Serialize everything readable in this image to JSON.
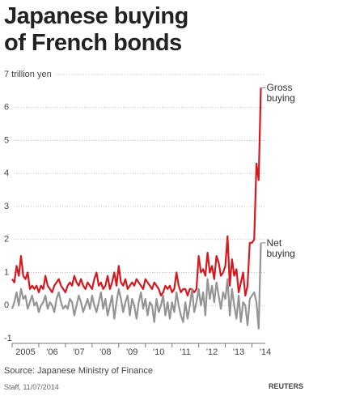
{
  "chart_data": {
    "type": "line",
    "title": "Japanese buying of French bonds",
    "source": "Source: Japanese Ministry of Finance",
    "credit": "Staff, 11/07/2014",
    "brand": "REUTERS",
    "xlim": [
      2005,
      2014.5
    ],
    "ylim": [
      -1,
      7
    ],
    "xticks": [
      {
        "value": 2005,
        "label": "2005"
      },
      {
        "value": 2006,
        "label": "'06"
      },
      {
        "value": 2007,
        "label": "'07"
      },
      {
        "value": 2008,
        "label": "'08"
      },
      {
        "value": 2009,
        "label": "'09"
      },
      {
        "value": 2010,
        "label": "'10"
      },
      {
        "value": 2011,
        "label": "'11"
      },
      {
        "value": 2012,
        "label": "'12"
      },
      {
        "value": 2013,
        "label": "'13"
      },
      {
        "value": 2014,
        "label": "'14"
      }
    ],
    "yticks": [
      -1,
      0,
      1,
      2,
      3,
      4,
      5,
      6,
      {
        "value": 7,
        "label": "7 trillion yen"
      }
    ],
    "grid": true,
    "x": [
      2005,
      2005.083,
      2005.167,
      2005.25,
      2005.333,
      2005.417,
      2005.5,
      2005.583,
      2005.667,
      2005.75,
      2005.833,
      2005.917,
      2006,
      2006.083,
      2006.167,
      2006.25,
      2006.333,
      2006.417,
      2006.5,
      2006.583,
      2006.667,
      2006.75,
      2006.833,
      2006.917,
      2007,
      2007.083,
      2007.167,
      2007.25,
      2007.333,
      2007.417,
      2007.5,
      2007.583,
      2007.667,
      2007.75,
      2007.833,
      2007.917,
      2008,
      2008.083,
      2008.167,
      2008.25,
      2008.333,
      2008.417,
      2008.5,
      2008.583,
      2008.667,
      2008.75,
      2008.833,
      2008.917,
      2009,
      2009.083,
      2009.167,
      2009.25,
      2009.333,
      2009.417,
      2009.5,
      2009.583,
      2009.667,
      2009.75,
      2009.833,
      2009.917,
      2010,
      2010.083,
      2010.167,
      2010.25,
      2010.333,
      2010.417,
      2010.5,
      2010.583,
      2010.667,
      2010.75,
      2010.833,
      2010.917,
      2011,
      2011.083,
      2011.167,
      2011.25,
      2011.333,
      2011.417,
      2011.5,
      2011.583,
      2011.667,
      2011.75,
      2011.833,
      2011.917,
      2012,
      2012.083,
      2012.167,
      2012.25,
      2012.333,
      2012.417,
      2012.5,
      2012.583,
      2012.667,
      2012.75,
      2012.833,
      2012.917,
      2013,
      2013.083,
      2013.167,
      2013.25,
      2013.333,
      2013.417,
      2013.5,
      2013.583,
      2013.667,
      2013.75,
      2013.833,
      2013.917,
      2014,
      2014.083,
      2014.167,
      2014.25,
      2014.333
    ],
    "series": [
      {
        "name": "Gross buying",
        "color": "#d7191f",
        "values": [
          0.8,
          0.7,
          1.2,
          0.9,
          1.5,
          0.9,
          0.8,
          1.0,
          0.5,
          0.6,
          0.5,
          0.6,
          0.4,
          0.6,
          0.5,
          0.9,
          0.6,
          0.5,
          0.4,
          0.6,
          0.7,
          0.8,
          0.6,
          0.5,
          0.4,
          0.6,
          0.7,
          0.6,
          0.9,
          0.7,
          0.6,
          0.8,
          0.6,
          0.5,
          0.7,
          0.6,
          0.5,
          0.8,
          1.0,
          0.6,
          0.7,
          0.5,
          0.6,
          0.9,
          0.5,
          0.7,
          1.0,
          0.6,
          1.2,
          0.7,
          0.6,
          0.8,
          0.5,
          0.6,
          0.7,
          0.6,
          0.8,
          0.7,
          0.6,
          0.5,
          0.8,
          0.7,
          0.6,
          0.5,
          0.7,
          0.6,
          0.5,
          0.3,
          0.4,
          0.6,
          0.5,
          0.6,
          0.4,
          0.5,
          1.0,
          0.6,
          0.4,
          0.5,
          0.5,
          0.3,
          0.5,
          0.5,
          0.4,
          0.5,
          1.5,
          1.0,
          1.1,
          0.9,
          1.6,
          1.0,
          1.2,
          0.8,
          1.5,
          1.3,
          0.9,
          1.0,
          1.2,
          2.1,
          0.6,
          1.4,
          0.9,
          1.1,
          0.4,
          0.7,
          1.0,
          0.3,
          0.6,
          1.9,
          1.9,
          2.0,
          4.3,
          3.8,
          6.6
        ]
      },
      {
        "name": "Net buying",
        "color": "#949494",
        "values": [
          -0.1,
          0.1,
          0.4,
          0.0,
          0.5,
          0.2,
          0.3,
          -0.1,
          0.1,
          0.3,
          0.0,
          0.1,
          -0.2,
          0.0,
          0.1,
          0.3,
          -0.1,
          0.1,
          0.0,
          -0.2,
          0.2,
          0.4,
          0.1,
          -0.1,
          0.0,
          -0.1,
          0.2,
          0.1,
          -0.3,
          0.0,
          0.3,
          0.1,
          -0.2,
          0.0,
          0.2,
          -0.1,
          0.3,
          0.0,
          -0.2,
          0.1,
          0.4,
          -0.1,
          0.2,
          -0.3,
          0.0,
          0.3,
          -0.4,
          0.1,
          0.5,
          0.2,
          -0.2,
          0.1,
          0.3,
          -0.3,
          0.2,
          0.0,
          -0.4,
          0.1,
          0.4,
          -0.1,
          0.2,
          -0.3,
          0.1,
          0.0,
          -0.5,
          0.2,
          -0.2,
          0.0,
          0.3,
          -0.3,
          0.1,
          -0.4,
          0.1,
          -0.2,
          0.4,
          0.0,
          -0.3,
          -0.5,
          0.1,
          -0.4,
          0.0,
          0.5,
          -0.2,
          0.1,
          0.5,
          0.0,
          0.4,
          -0.3,
          0.8,
          0.2,
          0.6,
          0.1,
          0.7,
          0.3,
          -0.1,
          0.4,
          0.2,
          0.8,
          -0.3,
          0.5,
          0.0,
          -0.4,
          0.3,
          -0.5,
          0.1,
          0.0,
          -0.6,
          0.2,
          0.3,
          0.4,
          0.1,
          -0.7,
          1.9
        ]
      }
    ]
  }
}
